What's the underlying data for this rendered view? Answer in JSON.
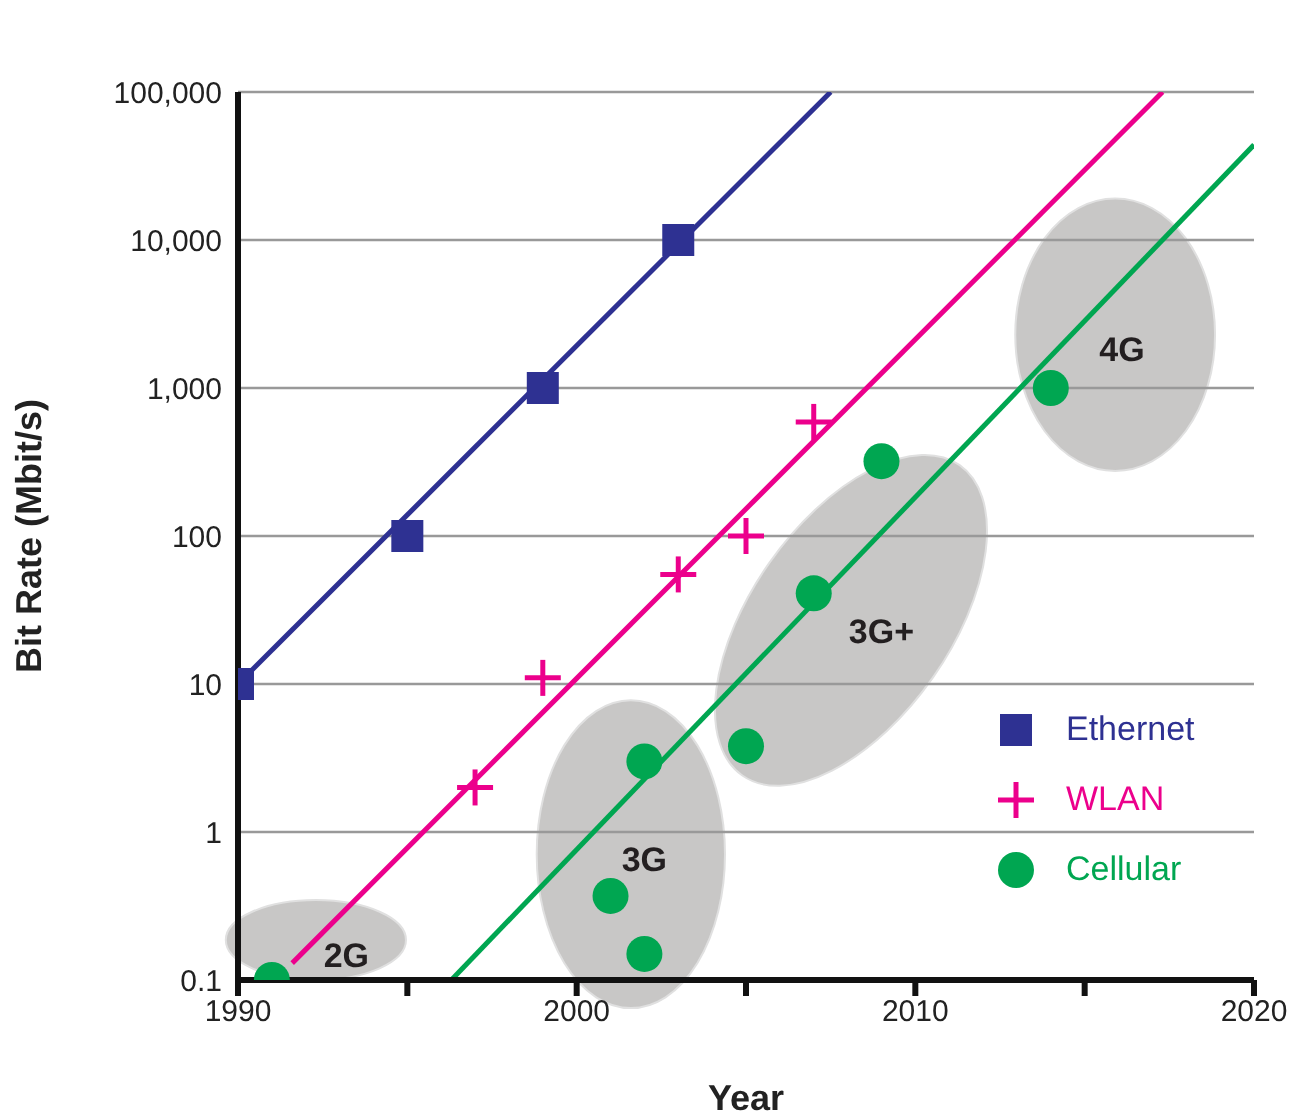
{
  "chart_data": {
    "type": "scatter",
    "xlabel": "Year",
    "ylabel": "Bit Rate (Mbit/s)",
    "xlim": [
      1990,
      2020
    ],
    "xticks": [
      1990,
      {
        "value": 1995,
        "label": null
      },
      2000,
      {
        "value": 2005,
        "label": null
      },
      2010,
      {
        "value": 2015,
        "label": null
      },
      2020
    ],
    "ylim": [
      0.1,
      100000
    ],
    "yticks": [
      {
        "value": 0.1,
        "label": "0.1"
      },
      1,
      10,
      100,
      {
        "value": 1000,
        "label": "1,000"
      },
      {
        "value": 10000,
        "label": "10,000"
      },
      {
        "value": 100000,
        "label": "100,000"
      }
    ],
    "log": "y",
    "grid": "y",
    "legend": "right",
    "series": [
      {
        "name": "Ethernet",
        "color": "#2e3192",
        "marker": "square",
        "x": [
          1990,
          1995,
          1999,
          2003
        ],
        "values": [
          10,
          100,
          1000,
          10000
        ]
      },
      {
        "name": "WLAN",
        "color": "#ec008c",
        "marker": "cross",
        "x": [
          1997,
          1999,
          2003,
          2005,
          2007
        ],
        "values": [
          2,
          11,
          55,
          100,
          590
        ]
      },
      {
        "name": "Cellular",
        "color": "#00a651",
        "marker": "circle",
        "x": [
          1991,
          2001,
          2002,
          2002,
          2005,
          2007,
          2009,
          2014
        ],
        "values": [
          0.1,
          0.37,
          0.15,
          3,
          3.8,
          41,
          320,
          1000
        ]
      },
      {
        "type": "line",
        "color": "#2e3192",
        "marker": "none",
        "x": [
          1990,
          2007.5
        ],
        "values": [
          10,
          100000
        ]
      },
      {
        "type": "line",
        "color": "#ec008c",
        "marker": "none",
        "x": [
          1991.6,
          2017.3
        ],
        "values": [
          0.13,
          100000
        ]
      },
      {
        "type": "line",
        "color": "#00a651",
        "marker": "none",
        "x": [
          1996.3,
          2020
        ],
        "values": [
          0.1,
          44000
        ]
      }
    ],
    "annotations": [
      "2G",
      "3G",
      "3G+",
      "4G"
    ]
  }
}
